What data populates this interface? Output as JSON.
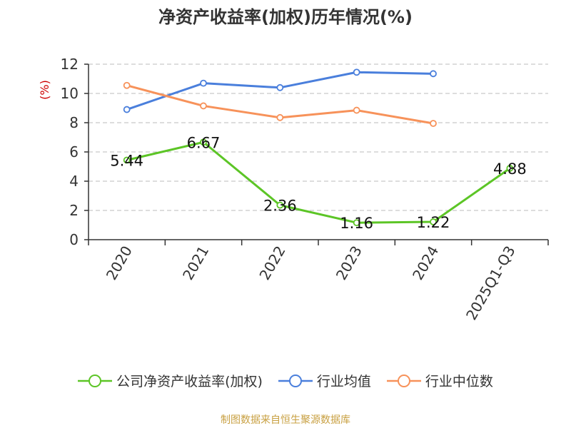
{
  "title": "净资产收益率(加权)历年情况(%)",
  "source_note": "制图数据来自恒生聚源数据库",
  "colors": {
    "axis": "#333333",
    "grid": "#bbbbbb",
    "ylabel": "#cc0000"
  },
  "chart_data": {
    "type": "line",
    "title": "净资产收益率(加权)历年情况(%)",
    "xlabel": "",
    "ylabel": "(%)",
    "categories": [
      "2020",
      "2021",
      "2022",
      "2023",
      "2024",
      "2025Q1-Q3"
    ],
    "ylim": [
      0,
      12
    ],
    "yticks": [
      0,
      2,
      4,
      6,
      8,
      10,
      12
    ],
    "grid": true,
    "legend_position": "bottom",
    "series": [
      {
        "name": "公司净资产收益率(加权)",
        "color": "#5cc526",
        "show_labels": true,
        "values": [
          5.44,
          6.67,
          2.36,
          1.16,
          1.22,
          4.88
        ],
        "labels": [
          "5.44",
          "6.67",
          "2.36",
          "1.16",
          "1.22",
          "4.88"
        ]
      },
      {
        "name": "行业均值",
        "color": "#4a7fdc",
        "show_labels": false,
        "values": [
          8.9,
          10.7,
          10.4,
          11.45,
          11.35,
          null
        ]
      },
      {
        "name": "行业中位数",
        "color": "#f7925a",
        "show_labels": false,
        "values": [
          10.55,
          9.15,
          8.35,
          8.85,
          7.95,
          null
        ]
      }
    ]
  }
}
